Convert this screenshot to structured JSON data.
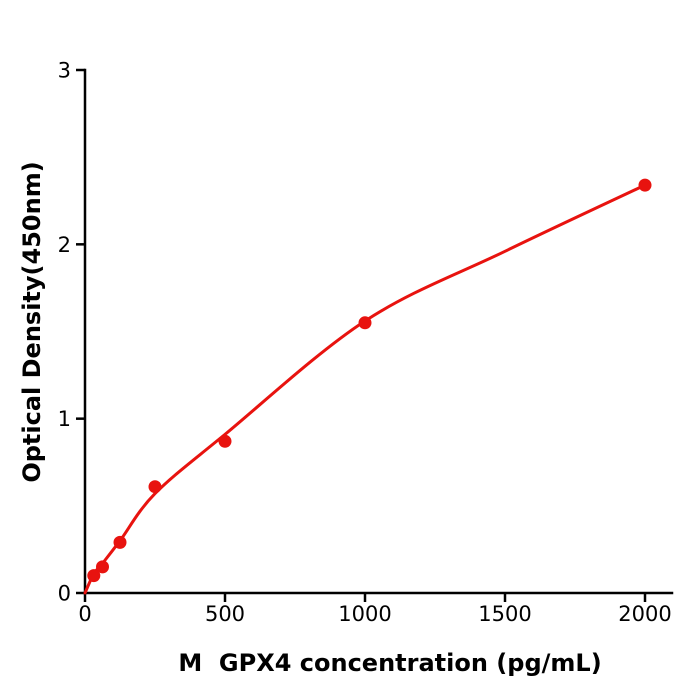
{
  "page": {
    "background": "#ffffff"
  },
  "chart_data": {
    "type": "scatter",
    "title": "",
    "xlabel": "M  GPX4 concentration (pg/mL)",
    "ylabel": "Optical Density(450nm)",
    "x_tick_labels": [
      "0",
      "500",
      "1000",
      "1500",
      "2000"
    ],
    "x_tick_values": [
      0,
      500,
      1000,
      1500,
      2000
    ],
    "y_tick_labels": [
      "0",
      "1",
      "2",
      "3"
    ],
    "y_tick_values": [
      0,
      1,
      2,
      3
    ],
    "xlim": [
      0,
      2095
    ],
    "ylim": [
      0,
      3
    ],
    "grid": false,
    "legend_position": "none",
    "axis_color": "#000000",
    "point_color": "#e8130f",
    "curve_color": "#e8130f",
    "series": [
      {
        "name": "fit-curve",
        "type": "line",
        "color": "#e8130f",
        "stroke_width": 3,
        "x": [
          0,
          31.25,
          62.5,
          125,
          250,
          500,
          1000,
          1500,
          2000
        ],
        "y": [
          0.0,
          0.11,
          0.17,
          0.3,
          0.57,
          0.91,
          1.56,
          1.96,
          2.34
        ]
      },
      {
        "name": "standard-points",
        "type": "scatter",
        "color": "#e8130f",
        "marker": "circle",
        "marker_radius": 6.5,
        "x": [
          31.25,
          62.5,
          125,
          250,
          500,
          1000,
          2000
        ],
        "y": [
          0.1,
          0.15,
          0.29,
          0.61,
          0.87,
          1.55,
          2.34
        ]
      }
    ]
  }
}
